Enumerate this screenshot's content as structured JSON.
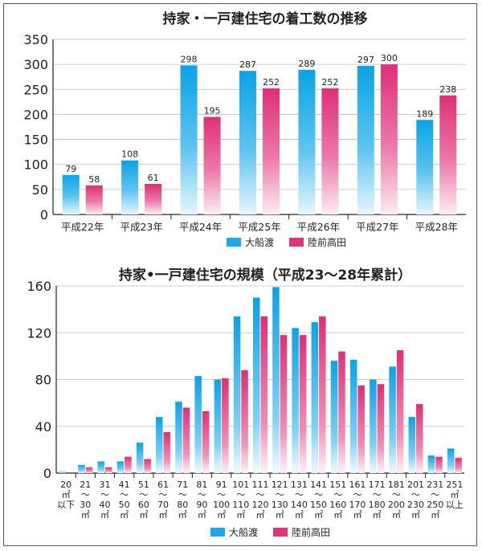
{
  "chart_data": [
    {
      "type": "bar",
      "title": "持家・一戸建住宅の着工数の推移",
      "categories": [
        "平成22年",
        "平成23年",
        "平成24年",
        "平成25年",
        "平成26年",
        "平成27年",
        "平成28年"
      ],
      "series": [
        {
          "name": "大船渡",
          "values": [
            79,
            108,
            298,
            287,
            289,
            297,
            189
          ],
          "color": "#1aa9e8"
        },
        {
          "name": "陸前高田",
          "values": [
            58,
            61,
            195,
            252,
            252,
            300,
            238
          ],
          "color": "#e0347a"
        }
      ],
      "yticks": [
        "0",
        "50",
        "100",
        "150",
        "200",
        "250",
        "300",
        "350"
      ],
      "ylim": [
        0,
        350
      ],
      "data_labels": true,
      "legend": "bottom"
    },
    {
      "type": "bar",
      "title": "持家•一戸建住宅の規模（平成23〜28年累計）",
      "categories": [
        [
          "20",
          "㎡",
          "以下"
        ],
        [
          "21",
          "〜",
          "30",
          "㎡"
        ],
        [
          "31",
          "〜",
          "40",
          "㎡"
        ],
        [
          "41",
          "〜",
          "50",
          "㎡"
        ],
        [
          "51",
          "〜",
          "60",
          "㎡"
        ],
        [
          "61",
          "〜",
          "70",
          "㎡"
        ],
        [
          "71",
          "〜",
          "80",
          "㎡"
        ],
        [
          "81",
          "〜",
          "90",
          "㎡"
        ],
        [
          "91",
          "〜",
          "100",
          "㎡"
        ],
        [
          "101",
          "〜",
          "110",
          "㎡"
        ],
        [
          "111",
          "〜",
          "120",
          "㎡"
        ],
        [
          "121",
          "〜",
          "130",
          "㎡"
        ],
        [
          "131",
          "〜",
          "140",
          "㎡"
        ],
        [
          "141",
          "〜",
          "150",
          "㎡"
        ],
        [
          "151",
          "〜",
          "160",
          "㎡"
        ],
        [
          "161",
          "〜",
          "170",
          "㎡"
        ],
        [
          "171",
          "〜",
          "180",
          "㎡"
        ],
        [
          "181",
          "〜",
          "200",
          "㎡"
        ],
        [
          "201",
          "〜",
          "230",
          "㎡"
        ],
        [
          "231",
          "〜",
          "250",
          "㎡"
        ],
        [
          "251",
          "㎡",
          "以上"
        ]
      ],
      "series": [
        {
          "name": "大船渡",
          "values": [
            1,
            7,
            10,
            10,
            26,
            48,
            61,
            83,
            80,
            134,
            150,
            159,
            124,
            129,
            96,
            97,
            80,
            91,
            48,
            15,
            21
          ],
          "color": "#1aa9e8"
        },
        {
          "name": "陸前高田",
          "values": [
            0,
            5,
            5,
            14,
            12,
            35,
            56,
            53,
            81,
            88,
            134,
            118,
            118,
            134,
            104,
            75,
            76,
            105,
            59,
            14,
            13
          ],
          "color": "#e0347a"
        }
      ],
      "yticks": [
        "0",
        "40",
        "80",
        "120",
        "160"
      ],
      "ylim": [
        0,
        160
      ],
      "legend": "bottom"
    }
  ]
}
